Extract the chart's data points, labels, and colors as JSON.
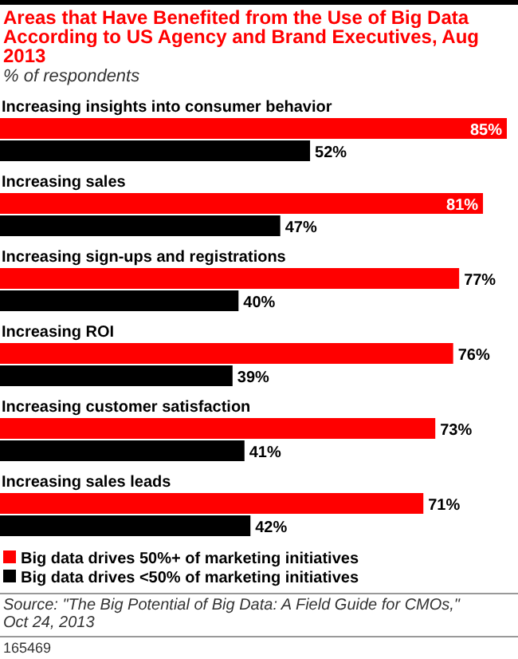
{
  "chart_data": {
    "type": "bar",
    "orientation": "horizontal",
    "title": "Areas that Have Benefited from the Use of Big Data According to US Agency and Brand Executives, Aug 2013",
    "subtitle": "% of respondents",
    "categories": [
      "Increasing insights into consumer behavior",
      "Increasing sales",
      "Increasing sign-ups and registrations",
      "Increasing ROI",
      "Increasing customer satisfaction",
      "Increasing sales leads"
    ],
    "series": [
      {
        "name": "Big data drives 50%+ of marketing initiatives",
        "color": "#ff0000",
        "values": [
          85,
          81,
          77,
          76,
          73,
          71
        ],
        "value_labels": [
          "85%",
          "81%",
          "77%",
          "76%",
          "73%",
          "71%"
        ]
      },
      {
        "name": "Big data drives <50% of marketing initiatives",
        "color": "#000000",
        "values": [
          52,
          47,
          40,
          39,
          41,
          42
        ],
        "value_labels": [
          "52%",
          "47%",
          "40%",
          "39%",
          "41%",
          "42%"
        ]
      }
    ],
    "legend": "bottom",
    "annotations": [
      "Source: \"The Big Potential of Big Data: A Field Guide for CMOs,\" Oct 24, 2013",
      "165469"
    ]
  }
}
